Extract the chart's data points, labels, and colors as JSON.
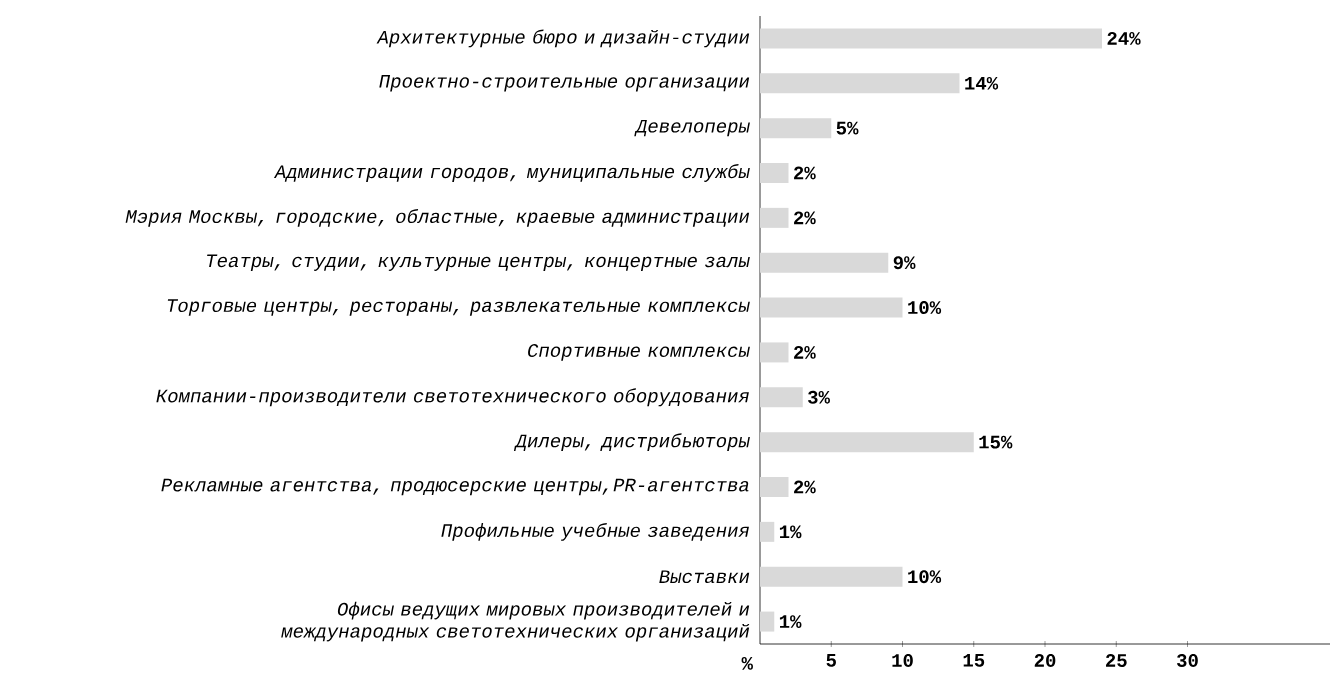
{
  "chart_data": {
    "type": "bar",
    "orientation": "horizontal",
    "xlabel": "%",
    "categories": [
      "Архитектурные бюро и дизайн-студии",
      "Проектно-строительные организации",
      "Девелоперы",
      "Администрации городов, муниципальные службы",
      "Мэрия Москвы, городские, областные, краевые администрации",
      "Театры, студии, культурные центры, концертные залы",
      "Торговые центры, рестораны, развлекательные комплексы",
      "Спортивные комплексы",
      "Компании-производители светотехнического оборудования",
      "Дилеры, дистрибьюторы",
      "Рекламные агентства, продюсерские центры,PR-агентства",
      "Профильные учебные заведения",
      "Выставки",
      "Офисы ведущих мировых производителей и международных светотехнических организаций"
    ],
    "values": [
      24,
      14,
      5,
      2,
      2,
      9,
      10,
      2,
      3,
      15,
      2,
      1,
      10,
      1
    ],
    "value_labels": [
      "24%",
      "14%",
      "5%",
      "2%",
      "2%",
      "9%",
      "10%",
      "2%",
      "3%",
      "15%",
      "2%",
      "1%",
      "10%",
      "1%"
    ],
    "color": "#d9d9d9",
    "xlim": [
      0,
      40
    ],
    "xticks": [
      5,
      10,
      15,
      20,
      25,
      30
    ]
  }
}
